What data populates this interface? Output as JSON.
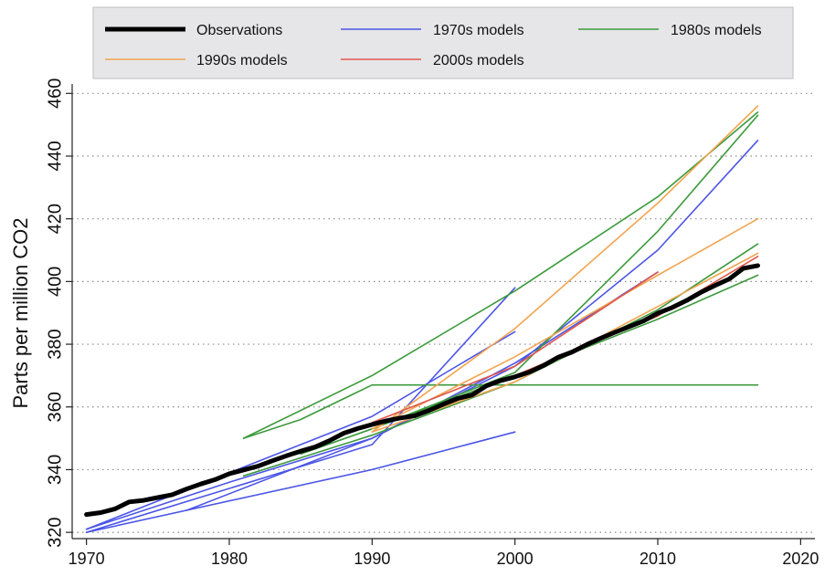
{
  "chart_data": {
    "type": "line",
    "title": "",
    "xlabel": "",
    "ylabel": "Parts per million CO2",
    "xlim": [
      1969,
      2021
    ],
    "ylim": [
      318,
      463
    ],
    "x_ticks": [
      1970,
      1980,
      1990,
      2000,
      2010,
      2020
    ],
    "y_ticks": [
      320,
      340,
      360,
      380,
      400,
      420,
      440,
      460
    ],
    "x_tick_labels": [
      "1970",
      "1980",
      "1990",
      "2000",
      "2010",
      "2020"
    ],
    "y_tick_labels": [
      "320",
      "340",
      "360",
      "380",
      "400",
      "420",
      "440",
      "460"
    ],
    "grid": "horizontal dotted",
    "legend_placement": "top",
    "legend": [
      {
        "label": "Observations",
        "group": "obs"
      },
      {
        "label": "1970s models",
        "group": "m1970"
      },
      {
        "label": "1980s models",
        "group": "m1980"
      },
      {
        "label": "1990s models",
        "group": "m1990"
      },
      {
        "label": "2000s models",
        "group": "m2000"
      }
    ],
    "colors": {
      "obs": "#000000",
      "m1970": "#4b55e6",
      "m1980": "#3c9a3c",
      "m1990": "#f2a450",
      "m2000": "#e0564a"
    },
    "series": [
      {
        "name": "1970s models",
        "group": "m1970",
        "x": [
          1970,
          1990,
          2000
        ],
        "y": [
          320,
          348,
          398
        ]
      },
      {
        "name": "1970s models",
        "group": "m1970",
        "x": [
          1970,
          1990,
          2000
        ],
        "y": [
          320,
          340,
          352
        ]
      },
      {
        "name": "1970s models",
        "group": "m1970",
        "x": [
          1970,
          1990,
          2000
        ],
        "y": [
          321,
          357,
          384
        ]
      },
      {
        "name": "1970s models",
        "group": "m1970",
        "x": [
          1977,
          1990,
          2000,
          2010,
          2017
        ],
        "y": [
          327,
          350,
          373,
          410,
          445
        ]
      },
      {
        "name": "1970s models",
        "group": "m1970",
        "x": [
          1970,
          1980,
          1990,
          2000,
          2010
        ],
        "y": [
          321,
          336,
          350,
          374,
          403
        ]
      },
      {
        "name": "1980s models",
        "group": "m1980",
        "x": [
          1981,
          1985,
          1990,
          2000,
          2017
        ],
        "y": [
          350,
          356,
          367,
          367,
          367
        ]
      },
      {
        "name": "1980s models",
        "group": "m1980",
        "x": [
          1981,
          1990,
          2000,
          2010,
          2017
        ],
        "y": [
          338,
          351,
          368,
          391,
          412
        ]
      },
      {
        "name": "1980s models",
        "group": "m1980",
        "x": [
          1985,
          1990,
          2000,
          2010,
          2017
        ],
        "y": [
          345,
          353,
          370,
          388,
          402
        ]
      },
      {
        "name": "1980s models",
        "group": "m1980",
        "x": [
          1985,
          1990,
          2000,
          2010,
          2017
        ],
        "y": [
          345,
          353,
          371,
          416,
          453
        ]
      },
      {
        "name": "1980s models",
        "group": "m1980",
        "x": [
          1981,
          1990,
          2000,
          2010,
          2017
        ],
        "y": [
          350,
          370,
          397,
          427,
          454
        ]
      },
      {
        "name": "1990s models",
        "group": "m1990",
        "x": [
          1990,
          2000,
          2010,
          2017
        ],
        "y": [
          353,
          376,
          402,
          420
        ]
      },
      {
        "name": "1990s models",
        "group": "m1990",
        "x": [
          1990,
          2000,
          2010,
          2017
        ],
        "y": [
          352,
          368,
          392,
          409
        ]
      },
      {
        "name": "1990s models",
        "group": "m1990",
        "x": [
          1990,
          2000,
          2010,
          2017
        ],
        "y": [
          352,
          385,
          425,
          456
        ]
      },
      {
        "name": "2000s models",
        "group": "m2000",
        "x": [
          2000,
          2010,
          2017
        ],
        "y": [
          370,
          389,
          408
        ]
      },
      {
        "name": "2000s models",
        "group": "m2000",
        "x": [
          1990,
          2000,
          2010
        ],
        "y": [
          355,
          373,
          403
        ]
      },
      {
        "name": "Observations",
        "group": "obs",
        "x": [
          1970,
          1971,
          1972,
          1973,
          1974,
          1975,
          1976,
          1977,
          1978,
          1979,
          1980,
          1981,
          1982,
          1983,
          1984,
          1985,
          1986,
          1987,
          1988,
          1989,
          1990,
          1991,
          1992,
          1993,
          1994,
          1995,
          1996,
          1997,
          1998,
          1999,
          2000,
          2001,
          2002,
          2003,
          2004,
          2005,
          2006,
          2007,
          2008,
          2009,
          2010,
          2011,
          2012,
          2013,
          2014,
          2015,
          2016,
          2017
        ],
        "y": [
          325.7,
          326.3,
          327.5,
          329.7,
          330.2,
          331.1,
          332.0,
          333.8,
          335.4,
          336.8,
          338.7,
          339.9,
          341.1,
          342.8,
          344.4,
          345.9,
          347.2,
          349.2,
          351.6,
          353.1,
          354.4,
          355.6,
          356.5,
          357.2,
          358.9,
          360.9,
          362.7,
          363.8,
          366.7,
          368.4,
          369.6,
          371.1,
          373.2,
          375.8,
          377.5,
          379.8,
          381.9,
          383.8,
          385.6,
          387.4,
          389.9,
          391.7,
          393.9,
          396.5,
          398.7,
          400.8,
          404.2,
          405.1
        ]
      }
    ]
  }
}
